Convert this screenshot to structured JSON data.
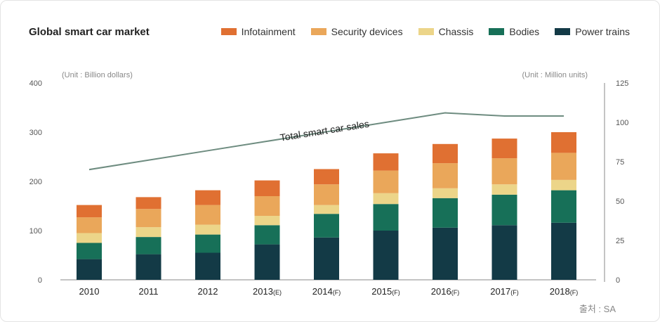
{
  "colors": {
    "infotainment": "#e07032",
    "security": "#eaa75a",
    "chassis": "#ecd589",
    "bodies": "#177058",
    "powertrains": "#133a46",
    "line": "#6e8c80",
    "axis": "#333333"
  },
  "source": "출처 : SA",
  "legend": [
    {
      "key": "infotainment",
      "label": "Infotainment",
      "color": "#e07032"
    },
    {
      "key": "security",
      "label": "Security devices",
      "color": "#eaa75a"
    },
    {
      "key": "chassis",
      "label": "Chassis",
      "color": "#ecd589"
    },
    {
      "key": "bodies",
      "label": "Bodies",
      "color": "#177058"
    },
    {
      "key": "powertrains",
      "label": "Power trains",
      "color": "#133a46"
    }
  ],
  "chart_data": {
    "type": "bar",
    "stacked": true,
    "title": "Global smart car market",
    "ylabel": "(Unit : Billion dollars)",
    "y2label": "(Unit : Million units)",
    "ylim": [
      0,
      400
    ],
    "y2lim": [
      0,
      125
    ],
    "yticks": [
      0,
      100,
      200,
      300,
      400
    ],
    "y2ticks": [
      0,
      25,
      50,
      75,
      100,
      125
    ],
    "categories": [
      {
        "main": "2010",
        "suffix": ""
      },
      {
        "main": "2011",
        "suffix": ""
      },
      {
        "main": "2012",
        "suffix": ""
      },
      {
        "main": "2013",
        "suffix": "(E)"
      },
      {
        "main": "2014",
        "suffix": "(F)"
      },
      {
        "main": "2015",
        "suffix": "(F)"
      },
      {
        "main": "2016",
        "suffix": "(F)"
      },
      {
        "main": "2017",
        "suffix": "(F)"
      },
      {
        "main": "2018",
        "suffix": "(F)"
      }
    ],
    "series": [
      {
        "key": "powertrains",
        "name": "Power trains",
        "values": [
          42,
          52,
          55,
          72,
          86,
          100,
          106,
          111,
          116
        ]
      },
      {
        "key": "bodies",
        "name": "Bodies",
        "values": [
          33,
          35,
          37,
          39,
          48,
          54,
          60,
          62,
          66
        ]
      },
      {
        "key": "chassis",
        "name": "Chassis",
        "values": [
          20,
          20,
          20,
          19,
          18,
          22,
          20,
          21,
          21
        ]
      },
      {
        "key": "security",
        "name": "Security devices",
        "values": [
          32,
          37,
          40,
          40,
          42,
          46,
          51,
          53,
          55
        ]
      },
      {
        "key": "infotainment",
        "name": "Infotainment",
        "values": [
          25,
          24,
          30,
          32,
          31,
          35,
          39,
          40,
          42
        ]
      }
    ],
    "line_series": {
      "name": "Total smart car sales",
      "axis": "right",
      "values": [
        70,
        76,
        82,
        88,
        94,
        100,
        106,
        104,
        104
      ]
    },
    "annotation": "Total smart car sales"
  }
}
